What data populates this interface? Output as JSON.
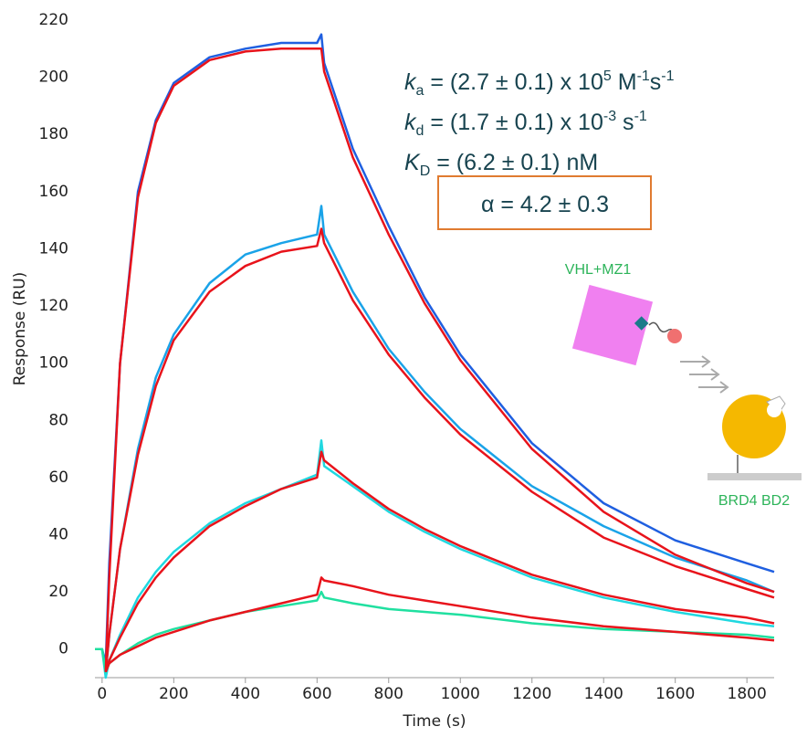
{
  "chart_data": {
    "type": "line",
    "xlabel": "Time (s)",
    "ylabel": "Response (RU)",
    "x": [
      -20,
      0,
      10,
      20,
      50,
      100,
      150,
      200,
      300,
      400,
      500,
      600,
      612,
      620,
      700,
      800,
      900,
      1000,
      1200,
      1400,
      1600,
      1800,
      1876
    ],
    "series": [
      {
        "color": "#1f5fe0",
        "values": [
          0,
          0,
          -5,
          30,
          100,
          160,
          185,
          198,
          207,
          210,
          212,
          212,
          215,
          205,
          175,
          148,
          123,
          103,
          72,
          51,
          38,
          30,
          27
        ]
      },
      {
        "color": "#1aa3e8",
        "values": [
          0,
          0,
          -8,
          5,
          35,
          70,
          95,
          110,
          128,
          138,
          142,
          145,
          155,
          145,
          125,
          105,
          90,
          77,
          57,
          43,
          32,
          24,
          20
        ]
      },
      {
        "color": "#20d8e0",
        "values": [
          0,
          0,
          -10,
          -4,
          5,
          18,
          27,
          34,
          44,
          51,
          56,
          61,
          73,
          64,
          57,
          48,
          41,
          35,
          25,
          18,
          13,
          9,
          8
        ]
      },
      {
        "color": "#20e0a0",
        "values": [
          0,
          0,
          -8,
          -5,
          -2,
          2,
          5,
          7,
          10,
          13,
          15,
          17,
          20,
          18,
          16,
          14,
          13,
          12,
          9,
          7,
          6,
          5,
          4
        ]
      },
      {
        "color": "#e8131b",
        "values": [
          null,
          null,
          -8,
          25,
          100,
          158,
          184,
          197,
          206,
          209,
          210,
          210,
          210,
          202,
          172,
          145,
          121,
          101,
          70,
          48,
          33,
          23,
          20
        ]
      },
      {
        "color": "#e8131b",
        "values": [
          null,
          null,
          -8,
          5,
          35,
          68,
          92,
          108,
          125,
          134,
          139,
          141,
          147,
          142,
          122,
          103,
          88,
          75,
          55,
          39,
          29,
          21,
          18
        ]
      },
      {
        "color": "#e8131b",
        "values": [
          null,
          null,
          -8,
          -4,
          4,
          16,
          25,
          32,
          43,
          50,
          56,
          60,
          69,
          66,
          58,
          49,
          42,
          36,
          26,
          19,
          14,
          11,
          9
        ]
      },
      {
        "color": "#e8131b",
        "values": [
          null,
          null,
          -8,
          -5,
          -2,
          1,
          4,
          6,
          10,
          13,
          16,
          19,
          25,
          24,
          22,
          19,
          17,
          15,
          11,
          8,
          6,
          4,
          3
        ]
      }
    ],
    "xlim": [
      -20,
      1876
    ],
    "xticks": [
      0,
      200,
      400,
      600,
      800,
      1000,
      1200,
      1400,
      1600,
      1800
    ],
    "ylim": [
      -10,
      220
    ],
    "yticks": [
      0,
      20,
      40,
      60,
      80,
      100,
      120,
      140,
      160,
      180,
      200,
      220
    ],
    "grid": false,
    "annotations": {
      "ka": [
        "k",
        "a",
        " = (2.7 ± 0.1) x 10",
        "5",
        " M",
        "-1",
        "s",
        "-1"
      ],
      "kd": [
        "k",
        "d",
        " = (1.7 ± 0.1) x 10",
        "-3",
        " s",
        "-1"
      ],
      "KD": [
        "K",
        "D",
        " = (6.2 ± 0.1) nM"
      ],
      "alpha": "α = 4.2 ± 0.3",
      "ligand": "VHL+MZ1",
      "target": "BRD4 BD2"
    }
  }
}
